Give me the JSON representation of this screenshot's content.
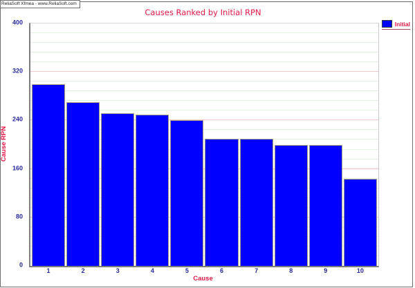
{
  "watermark": "ReliaSoft Xfmea - www.ReliaSoft.com",
  "chart_data": {
    "type": "bar",
    "title": "Causes Ranked by Initial RPN",
    "xlabel": "Cause",
    "ylabel": "Cause RPN",
    "categories": [
      "1",
      "2",
      "3",
      "4",
      "5",
      "6",
      "7",
      "8",
      "9",
      "10"
    ],
    "series": [
      {
        "name": "Initial",
        "values": [
          300,
          270,
          252,
          250,
          240,
          210,
          210,
          200,
          200,
          144
        ]
      }
    ],
    "ylim": [
      0,
      400
    ],
    "yticks": [
      0,
      80,
      160,
      240,
      320,
      400
    ],
    "y_major_step": 80,
    "y_minor_step": 16,
    "grid": true,
    "legend_position": "top-right"
  },
  "legend": {
    "items": [
      {
        "label": "Initial",
        "color": "#0000ff"
      }
    ]
  },
  "colors": {
    "bar_fill": "#0000ff",
    "bar_border": "#a39a85",
    "title_red": "#e61746",
    "tick_navy": "#2929a3",
    "grid_major": "#f7c6cb",
    "grid_minor": "#e4f2e4",
    "axis_line": "#7d7d7d",
    "frame": "#6e6e6e"
  }
}
